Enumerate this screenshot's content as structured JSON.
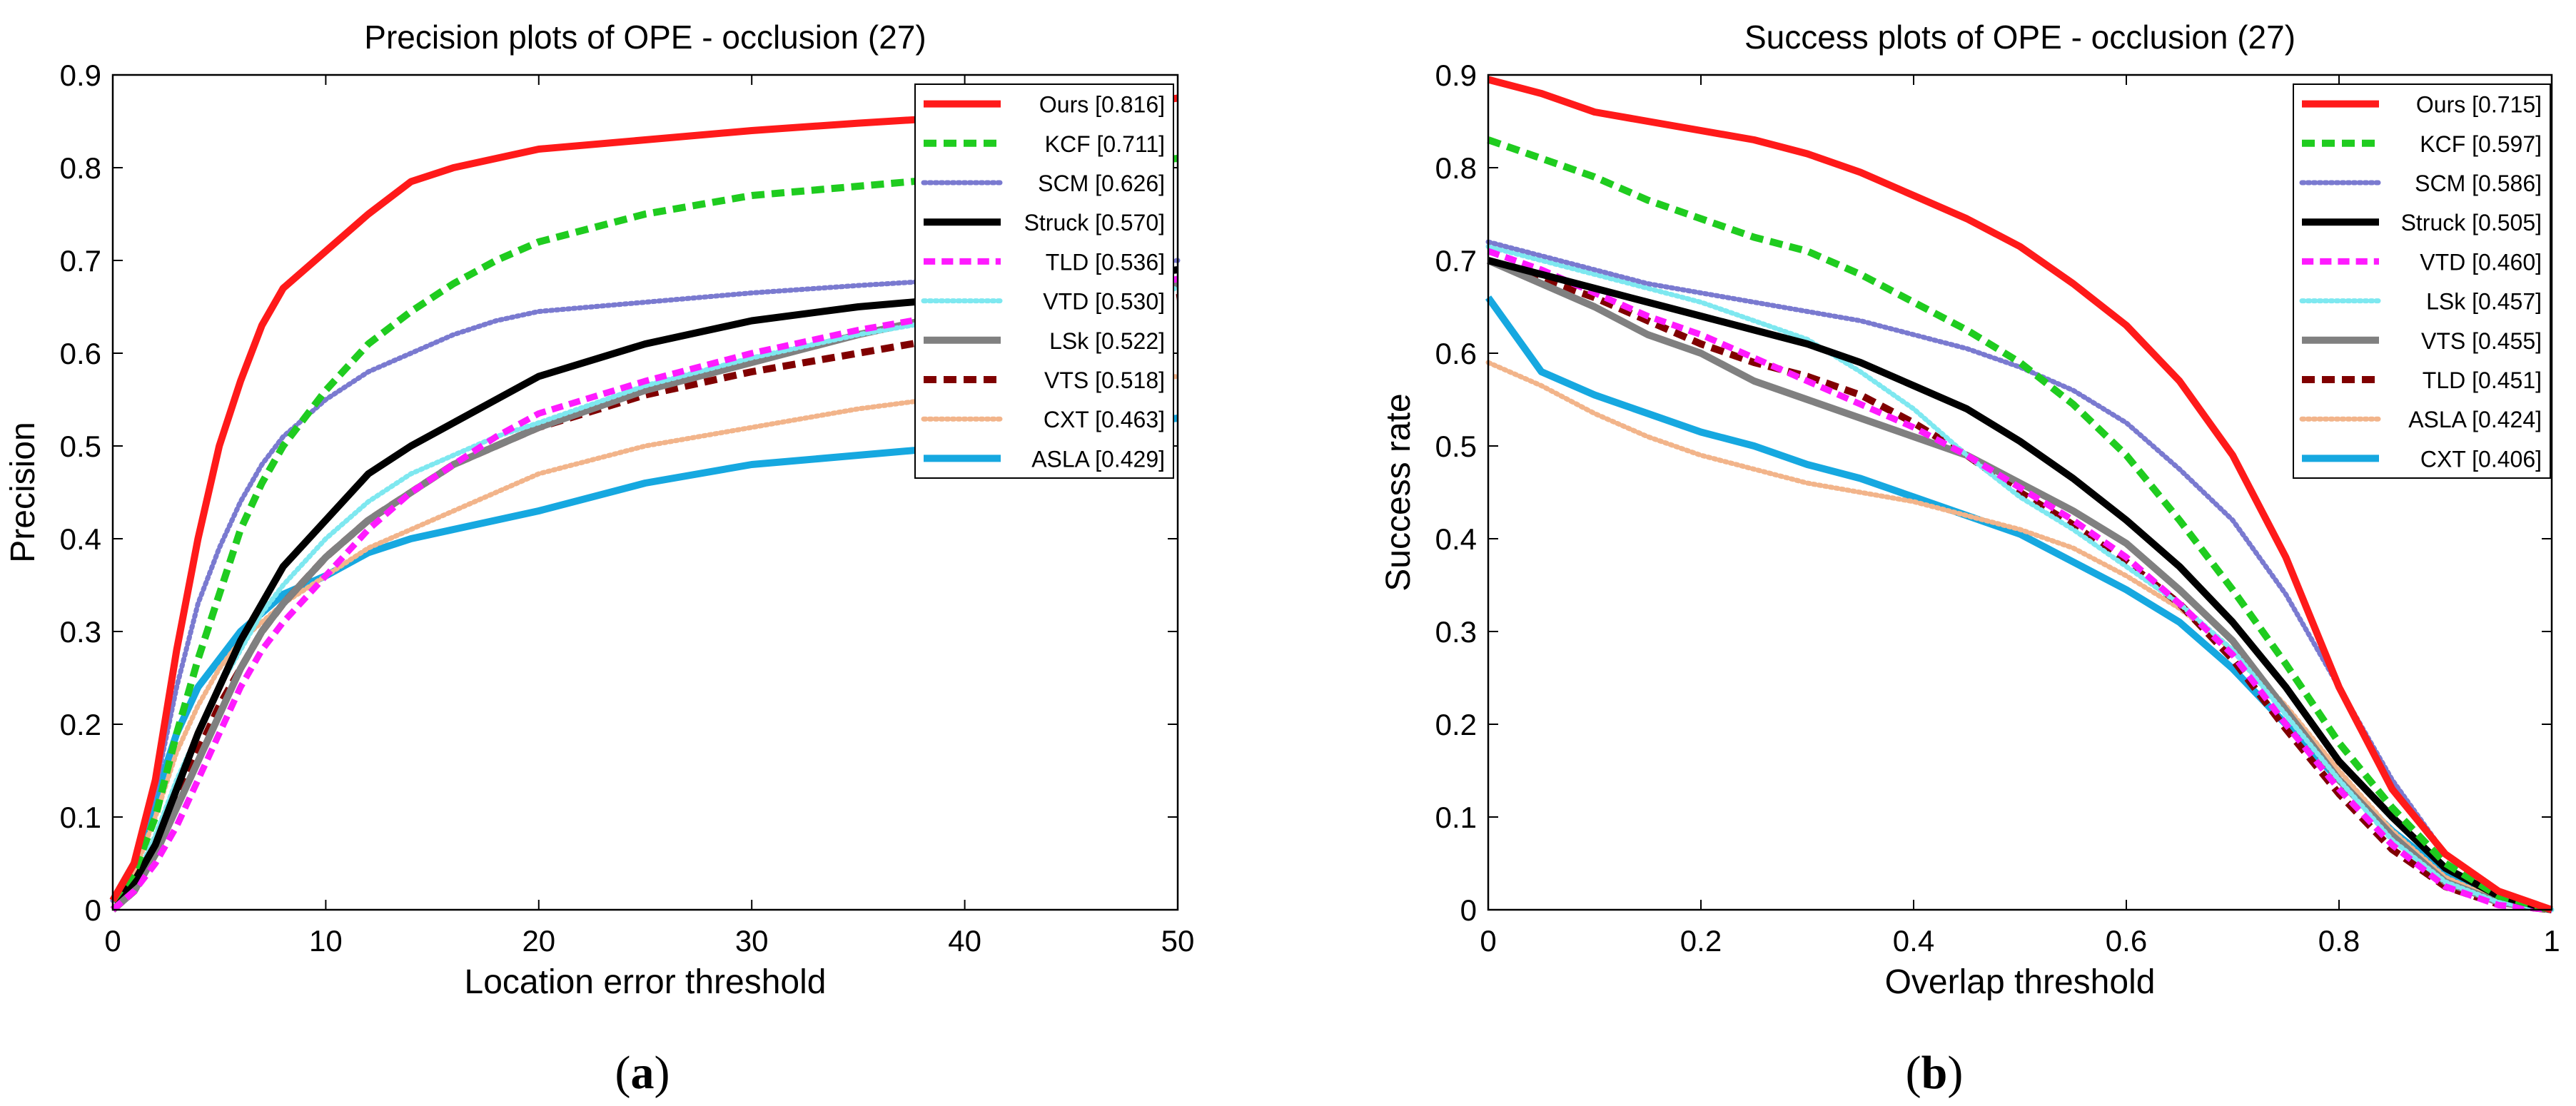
{
  "chart_data": [
    {
      "type": "line",
      "panel_label": "a",
      "title": "Precision plots of OPE - occlusion (27)",
      "xlabel": "Location error threshold",
      "ylabel": "Precision",
      "xlim": [
        0,
        50
      ],
      "ylim": [
        0,
        0.9
      ],
      "xticks": [
        0,
        10,
        20,
        30,
        40,
        50
      ],
      "xtick_labels": [
        "0",
        "10",
        "20",
        "30",
        "40",
        "50"
      ],
      "yticks": [
        0,
        0.1,
        0.2,
        0.3,
        0.4,
        0.5,
        0.6,
        0.7,
        0.8,
        0.9
      ],
      "ytick_labels": [
        "0",
        "0.1",
        "0.2",
        "0.3",
        "0.4",
        "0.5",
        "0.6",
        "0.7",
        "0.8",
        "0.9"
      ],
      "grid": false,
      "legend_position": "top-right",
      "x": [
        0,
        1,
        2,
        3,
        4,
        5,
        6,
        7,
        8,
        10,
        12,
        14,
        16,
        18,
        20,
        25,
        30,
        35,
        40,
        45,
        50
      ],
      "series": [
        {
          "label": "Ours [0.816]",
          "color": "#ff1a1a",
          "dash": "solid",
          "width": 10,
          "values": [
            0.01,
            0.05,
            0.14,
            0.28,
            0.4,
            0.5,
            0.57,
            0.63,
            0.67,
            0.71,
            0.75,
            0.785,
            0.8,
            0.81,
            0.82,
            0.83,
            0.84,
            0.848,
            0.855,
            0.86,
            0.875
          ]
        },
        {
          "label": "KCF [0.711]",
          "color": "#1fcc1f",
          "dash": "dashed",
          "width": 10,
          "values": [
            0.01,
            0.04,
            0.1,
            0.19,
            0.27,
            0.34,
            0.41,
            0.46,
            0.5,
            0.56,
            0.61,
            0.645,
            0.675,
            0.7,
            0.72,
            0.75,
            0.77,
            0.78,
            0.79,
            0.8,
            0.81
          ]
        },
        {
          "label": "SCM [0.626]",
          "color": "#7a7ad0",
          "dash": "dotted",
          "width": 7,
          "values": [
            0.01,
            0.05,
            0.13,
            0.24,
            0.33,
            0.39,
            0.44,
            0.48,
            0.51,
            0.55,
            0.58,
            0.6,
            0.62,
            0.635,
            0.645,
            0.655,
            0.665,
            0.673,
            0.68,
            0.69,
            0.7
          ]
        },
        {
          "label": "Struck [0.570]",
          "color": "#000000",
          "dash": "solid",
          "width": 10,
          "values": [
            0.01,
            0.03,
            0.07,
            0.13,
            0.19,
            0.24,
            0.29,
            0.33,
            0.37,
            0.42,
            0.47,
            0.5,
            0.525,
            0.55,
            0.575,
            0.61,
            0.635,
            0.65,
            0.66,
            0.675,
            0.69
          ]
        },
        {
          "label": "TLD [0.536]",
          "color": "#ff1aff",
          "dash": "dashed",
          "width": 9,
          "values": [
            0,
            0.02,
            0.05,
            0.09,
            0.14,
            0.19,
            0.24,
            0.28,
            0.31,
            0.36,
            0.41,
            0.45,
            0.48,
            0.51,
            0.535,
            0.57,
            0.6,
            0.625,
            0.645,
            0.66,
            0.68
          ]
        },
        {
          "label": "VTD [0.530]",
          "color": "#7ee8f0",
          "dash": "dotted",
          "width": 7,
          "values": [
            0.01,
            0.03,
            0.08,
            0.14,
            0.19,
            0.24,
            0.28,
            0.32,
            0.35,
            0.4,
            0.44,
            0.47,
            0.49,
            0.51,
            0.525,
            0.565,
            0.595,
            0.62,
            0.64,
            0.655,
            0.67
          ]
        },
        {
          "label": "LSk [0.522]",
          "color": "#808080",
          "dash": "solid",
          "width": 10,
          "values": [
            0,
            0.02,
            0.06,
            0.11,
            0.16,
            0.21,
            0.26,
            0.3,
            0.33,
            0.38,
            0.42,
            0.45,
            0.48,
            0.5,
            0.52,
            0.56,
            0.59,
            0.62,
            0.645,
            0.66,
            0.675
          ]
        },
        {
          "label": "VTS [0.518]",
          "color": "#800000",
          "dash": "dashed",
          "width": 10,
          "values": [
            0,
            0.02,
            0.06,
            0.12,
            0.17,
            0.22,
            0.26,
            0.3,
            0.33,
            0.38,
            0.42,
            0.45,
            0.48,
            0.5,
            0.52,
            0.555,
            0.58,
            0.6,
            0.62,
            0.64,
            0.66
          ]
        },
        {
          "label": "CXT [0.463]",
          "color": "#f2b48a",
          "dash": "dotted",
          "width": 7,
          "values": [
            0.01,
            0.04,
            0.1,
            0.17,
            0.22,
            0.26,
            0.29,
            0.31,
            0.33,
            0.36,
            0.39,
            0.41,
            0.43,
            0.45,
            0.47,
            0.5,
            0.52,
            0.54,
            0.555,
            0.565,
            0.575
          ]
        },
        {
          "label": "ASLA [0.429]",
          "color": "#16a8e0",
          "dash": "solid",
          "width": 10,
          "values": [
            0.01,
            0.05,
            0.12,
            0.19,
            0.24,
            0.27,
            0.3,
            0.32,
            0.34,
            0.36,
            0.385,
            0.4,
            0.41,
            0.42,
            0.43,
            0.46,
            0.48,
            0.49,
            0.5,
            0.515,
            0.53
          ]
        }
      ]
    },
    {
      "type": "line",
      "panel_label": "b",
      "title": "Success plots of OPE - occlusion (27)",
      "xlabel": "Overlap threshold",
      "ylabel": "Success rate",
      "xlim": [
        0,
        1
      ],
      "ylim": [
        0,
        0.9
      ],
      "xticks": [
        0,
        0.2,
        0.4,
        0.6,
        0.8,
        1
      ],
      "xtick_labels": [
        "0",
        "0.2",
        "0.4",
        "0.6",
        "0.8",
        "1"
      ],
      "yticks": [
        0,
        0.1,
        0.2,
        0.3,
        0.4,
        0.5,
        0.6,
        0.7,
        0.8,
        0.9
      ],
      "ytick_labels": [
        "0",
        "0.1",
        "0.2",
        "0.3",
        "0.4",
        "0.5",
        "0.6",
        "0.7",
        "0.8",
        "0.9"
      ],
      "grid": false,
      "legend_position": "top-right",
      "x": [
        0,
        0.05,
        0.1,
        0.15,
        0.2,
        0.25,
        0.3,
        0.35,
        0.4,
        0.45,
        0.5,
        0.55,
        0.6,
        0.65,
        0.7,
        0.75,
        0.8,
        0.85,
        0.9,
        0.95,
        1
      ],
      "series": [
        {
          "label": "Ours [0.715]",
          "color": "#ff1a1a",
          "dash": "solid",
          "width": 10,
          "values": [
            0.895,
            0.88,
            0.86,
            0.85,
            0.84,
            0.83,
            0.815,
            0.795,
            0.77,
            0.745,
            0.715,
            0.675,
            0.63,
            0.57,
            0.49,
            0.38,
            0.24,
            0.13,
            0.06,
            0.02,
            0
          ]
        },
        {
          "label": "KCF [0.597]",
          "color": "#1fcc1f",
          "dash": "dashed",
          "width": 10,
          "values": [
            0.83,
            0.81,
            0.79,
            0.765,
            0.745,
            0.725,
            0.71,
            0.685,
            0.655,
            0.625,
            0.59,
            0.545,
            0.49,
            0.42,
            0.345,
            0.265,
            0.18,
            0.11,
            0.05,
            0.015,
            0
          ]
        },
        {
          "label": "SCM [0.586]",
          "color": "#7a7ad0",
          "dash": "dotted",
          "width": 7,
          "values": [
            0.72,
            0.705,
            0.69,
            0.675,
            0.665,
            0.655,
            0.645,
            0.635,
            0.62,
            0.605,
            0.585,
            0.56,
            0.525,
            0.475,
            0.42,
            0.34,
            0.24,
            0.14,
            0.06,
            0.02,
            0
          ]
        },
        {
          "label": "Struck [0.505]",
          "color": "#000000",
          "dash": "solid",
          "width": 10,
          "values": [
            0.7,
            0.685,
            0.67,
            0.655,
            0.64,
            0.625,
            0.61,
            0.59,
            0.565,
            0.54,
            0.505,
            0.465,
            0.42,
            0.37,
            0.31,
            0.24,
            0.16,
            0.1,
            0.045,
            0.015,
            0
          ]
        },
        {
          "label": "VTD [0.460]",
          "color": "#ff1aff",
          "dash": "dashed",
          "width": 9,
          "values": [
            0.71,
            0.69,
            0.665,
            0.64,
            0.62,
            0.595,
            0.57,
            0.545,
            0.52,
            0.49,
            0.455,
            0.42,
            0.38,
            0.33,
            0.275,
            0.2,
            0.13,
            0.07,
            0.025,
            0.005,
            0
          ]
        },
        {
          "label": "LSk [0.457]",
          "color": "#7ee8f0",
          "dash": "dotted",
          "width": 7,
          "values": [
            0.715,
            0.7,
            0.685,
            0.67,
            0.655,
            0.635,
            0.615,
            0.58,
            0.54,
            0.49,
            0.445,
            0.41,
            0.37,
            0.33,
            0.28,
            0.21,
            0.14,
            0.075,
            0.03,
            0.008,
            0
          ]
        },
        {
          "label": "VTS [0.455]",
          "color": "#808080",
          "dash": "solid",
          "width": 10,
          "values": [
            0.7,
            0.675,
            0.65,
            0.62,
            0.6,
            0.57,
            0.55,
            0.53,
            0.51,
            0.49,
            0.46,
            0.43,
            0.395,
            0.345,
            0.29,
            0.215,
            0.14,
            0.08,
            0.03,
            0.008,
            0
          ]
        },
        {
          "label": "TLD [0.451]",
          "color": "#800000",
          "dash": "dashed",
          "width": 10,
          "values": [
            0.7,
            0.68,
            0.66,
            0.635,
            0.61,
            0.59,
            0.575,
            0.555,
            0.525,
            0.49,
            0.45,
            0.415,
            0.375,
            0.33,
            0.27,
            0.195,
            0.125,
            0.065,
            0.025,
            0.006,
            0
          ]
        },
        {
          "label": "ASLA [0.424]",
          "color": "#f2b48a",
          "dash": "dotted",
          "width": 7,
          "values": [
            0.59,
            0.565,
            0.535,
            0.51,
            0.49,
            0.475,
            0.46,
            0.45,
            0.44,
            0.425,
            0.41,
            0.39,
            0.36,
            0.325,
            0.28,
            0.22,
            0.15,
            0.085,
            0.035,
            0.01,
            0
          ]
        },
        {
          "label": "CXT [0.406]",
          "color": "#16a8e0",
          "dash": "solid",
          "width": 10,
          "values": [
            0.66,
            0.58,
            0.555,
            0.535,
            0.515,
            0.5,
            0.48,
            0.465,
            0.445,
            0.425,
            0.405,
            0.375,
            0.345,
            0.31,
            0.26,
            0.2,
            0.14,
            0.085,
            0.04,
            0.012,
            0
          ]
        }
      ]
    }
  ]
}
